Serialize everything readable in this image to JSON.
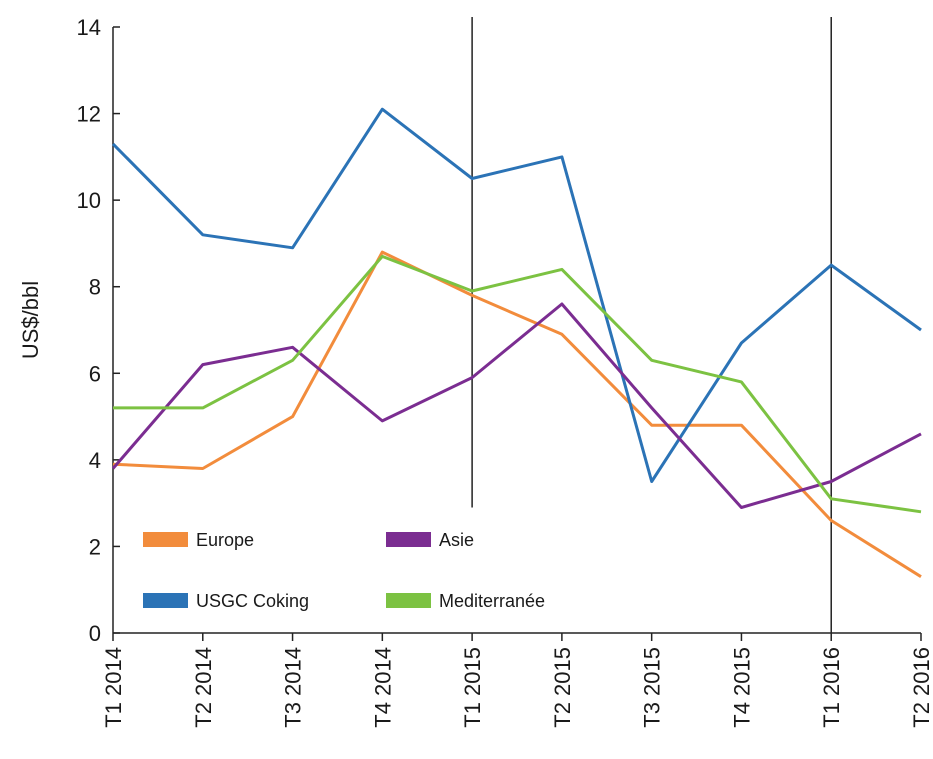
{
  "chart_data": {
    "type": "line",
    "title": "",
    "xlabel": "",
    "ylabel": "US$/bbl",
    "ylim": [
      0,
      14
    ],
    "yticks": [
      0,
      2,
      4,
      6,
      8,
      10,
      12,
      14
    ],
    "categories": [
      "T1 2014",
      "T2 2014",
      "T3 2014",
      "T4 2014",
      "T1 2015",
      "T2 2015",
      "T3 2015",
      "T4 2015",
      "T1 2016",
      "T2 2016"
    ],
    "grid": false,
    "legend_position": "bottom-left",
    "reference_lines": [
      {
        "category": "T1 2015",
        "y_top": 14,
        "y_bottom": 2.9
      },
      {
        "category": "T1 2016",
        "y_top": 14,
        "y_bottom": 0
      }
    ],
    "series": [
      {
        "name": "Europe",
        "color": "#f28c3c",
        "values": [
          3.9,
          3.8,
          5.0,
          8.8,
          7.8,
          6.9,
          4.8,
          4.8,
          2.6,
          1.3
        ]
      },
      {
        "name": "USGC Coking",
        "color": "#2b73b6",
        "values": [
          11.3,
          9.2,
          8.9,
          12.1,
          10.5,
          11.0,
          3.5,
          6.7,
          8.5,
          7.0
        ]
      },
      {
        "name": "Asie",
        "color": "#7b2d91",
        "values": [
          3.8,
          6.2,
          6.6,
          4.9,
          5.9,
          7.6,
          5.2,
          2.9,
          3.5,
          4.6
        ]
      },
      {
        "name": "Mediterranée",
        "color": "#7cc242",
        "values": [
          5.2,
          5.2,
          6.3,
          8.7,
          7.9,
          8.4,
          6.3,
          5.8,
          3.1,
          2.8
        ]
      }
    ]
  }
}
